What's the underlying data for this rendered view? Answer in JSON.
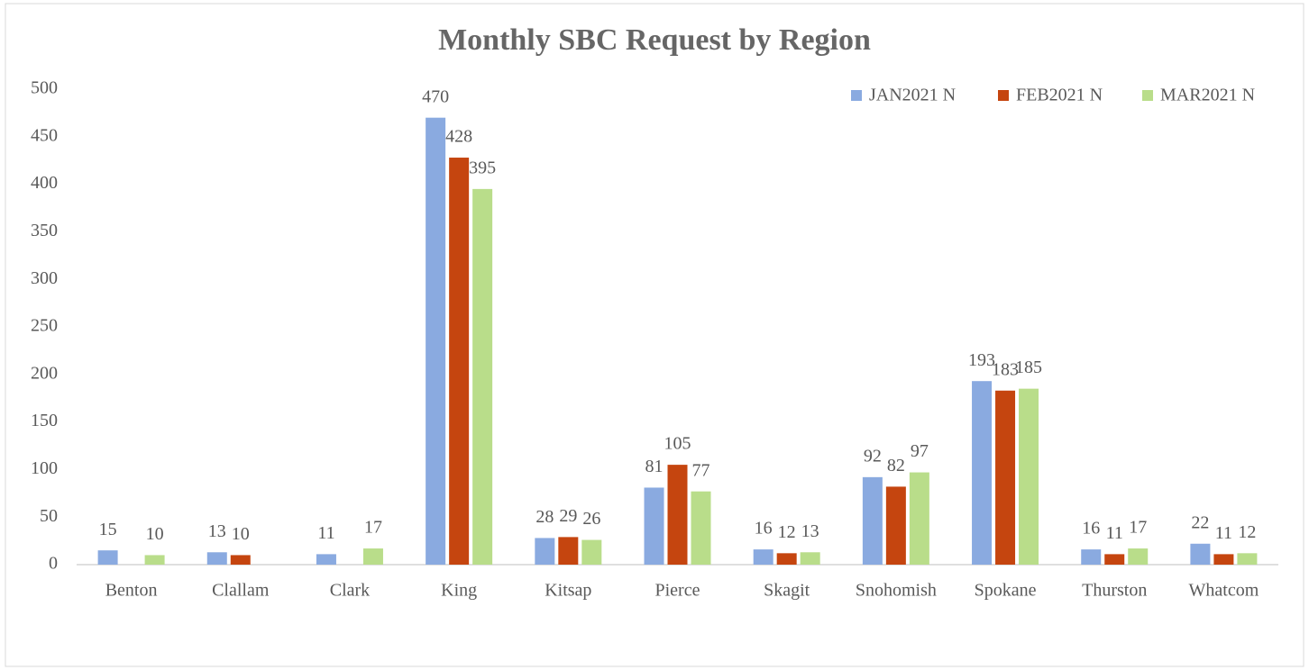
{
  "chart_data": {
    "type": "bar",
    "title": "Monthly SBC Request by Region",
    "categories": [
      "Benton",
      "Clallam",
      "Clark",
      "King",
      "Kitsap",
      "Pierce",
      "Skagit",
      "Snohomish",
      "Spokane",
      "Thurston",
      "Whatcom"
    ],
    "series": [
      {
        "name": "JAN2021 N",
        "color": "#8aaae0",
        "values": [
          15,
          13,
          11,
          470,
          28,
          81,
          16,
          92,
          193,
          16,
          22
        ]
      },
      {
        "name": "FEB2021 N",
        "color": "#c5450f",
        "values": [
          null,
          10,
          null,
          428,
          29,
          105,
          12,
          82,
          183,
          11,
          11
        ]
      },
      {
        "name": "MAR2021 N",
        "color": "#b9dd8a",
        "values": [
          10,
          null,
          17,
          395,
          26,
          77,
          13,
          97,
          185,
          17,
          12
        ]
      }
    ],
    "ylim": [
      0,
      500
    ],
    "yticks": [
      0,
      50,
      100,
      150,
      200,
      250,
      300,
      350,
      400,
      450,
      500
    ],
    "grid": false,
    "legend": "top-right"
  }
}
